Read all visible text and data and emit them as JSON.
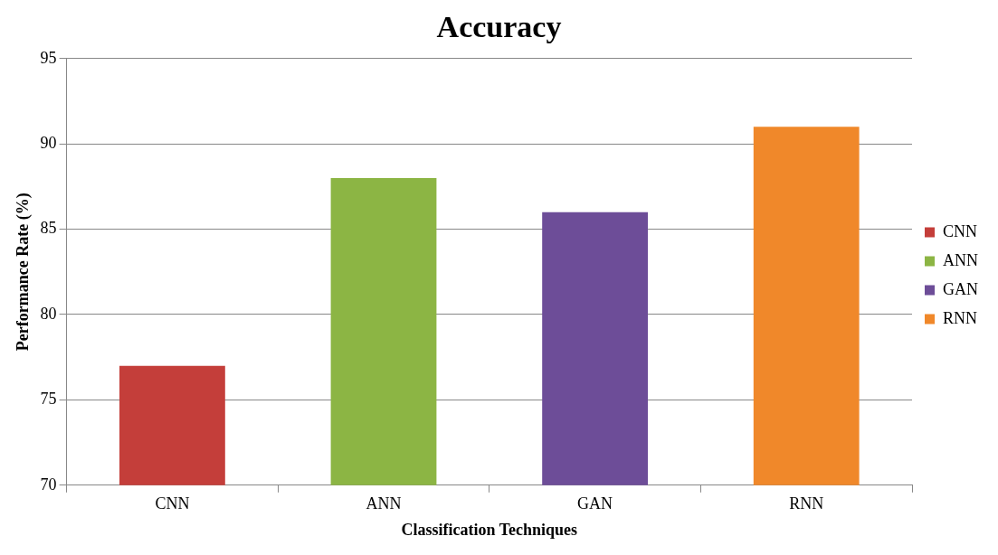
{
  "chart_data": {
    "type": "bar",
    "title": "Accuracy",
    "xlabel": "Classification Techniques",
    "ylabel": "Performance Rate (%)",
    "categories": [
      "CNN",
      "ANN",
      "GAN",
      "RNN"
    ],
    "series": [
      {
        "name": "CNN",
        "color": "#c43e3a",
        "values": [
          77,
          null,
          null,
          null
        ]
      },
      {
        "name": "ANN",
        "color": "#8cb544",
        "values": [
          null,
          88,
          null,
          null
        ]
      },
      {
        "name": "GAN",
        "color": "#6d4d98",
        "values": [
          null,
          null,
          86,
          null
        ]
      },
      {
        "name": "RNN",
        "color": "#f0882a",
        "values": [
          null,
          null,
          null,
          91
        ]
      }
    ],
    "ylim": [
      70,
      95
    ],
    "yticks": [
      70,
      75,
      80,
      85,
      90,
      95
    ],
    "grid": "y",
    "legend": "right"
  }
}
